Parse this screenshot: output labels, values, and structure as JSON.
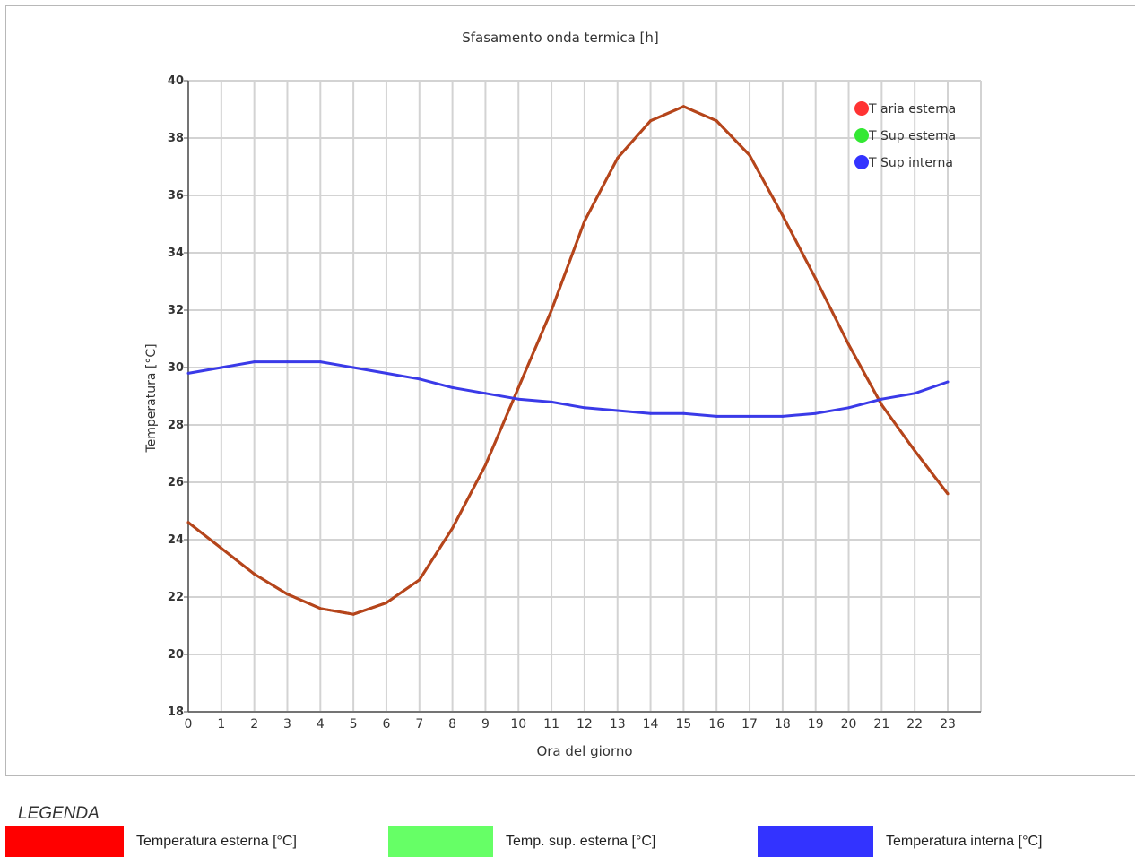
{
  "chart_data": {
    "type": "line",
    "title": "Sfasamento onda termica [h]",
    "xlabel": "Ora del giorno",
    "ylabel": "Temperatura [°C]",
    "x": [
      0,
      1,
      2,
      3,
      4,
      5,
      6,
      7,
      8,
      9,
      10,
      11,
      12,
      13,
      14,
      15,
      16,
      17,
      18,
      19,
      20,
      21,
      22,
      23
    ],
    "xlim": [
      0,
      23
    ],
    "ylim": [
      18,
      40
    ],
    "yticks": [
      18,
      20,
      22,
      24,
      26,
      28,
      30,
      32,
      34,
      36,
      38,
      40
    ],
    "grid": true,
    "legend_position": "top-right",
    "series": [
      {
        "name": "T aria esterna",
        "color": "#b5451b",
        "values": [
          24.6,
          23.7,
          22.8,
          22.1,
          21.6,
          21.4,
          21.8,
          22.6,
          24.4,
          26.6,
          29.3,
          32.0,
          35.1,
          37.3,
          38.6,
          39.1,
          38.6,
          37.4,
          35.3,
          33.1,
          30.8,
          28.7,
          27.1,
          25.6
        ]
      },
      {
        "name": "T Sup esterna",
        "color": "#b5451b",
        "values": [
          24.6,
          23.7,
          22.8,
          22.1,
          21.6,
          21.4,
          21.8,
          22.6,
          24.4,
          26.6,
          29.3,
          32.0,
          35.1,
          37.3,
          38.6,
          39.1,
          38.6,
          37.4,
          35.3,
          33.1,
          30.8,
          28.7,
          27.1,
          25.6
        ]
      },
      {
        "name": "T Sup interna",
        "color": "#3a3ae8",
        "values": [
          29.8,
          30.0,
          30.2,
          30.2,
          30.2,
          30.0,
          29.8,
          29.6,
          29.3,
          29.1,
          28.9,
          28.8,
          28.6,
          28.5,
          28.4,
          28.4,
          28.3,
          28.3,
          28.3,
          28.4,
          28.6,
          28.9,
          29.1,
          29.5
        ]
      }
    ],
    "legend_markers": [
      "#ff3333",
      "#33e833",
      "#3333ff"
    ]
  },
  "bottom_legend": {
    "title": "LEGENDA",
    "items": [
      {
        "label": "Temperatura esterna [°C]",
        "color": "#ff0000"
      },
      {
        "label": "Temp. sup. esterna [°C]",
        "color": "#66ff66"
      },
      {
        "label": "Temperatura interna [°C]",
        "color": "#3333ff"
      }
    ]
  }
}
